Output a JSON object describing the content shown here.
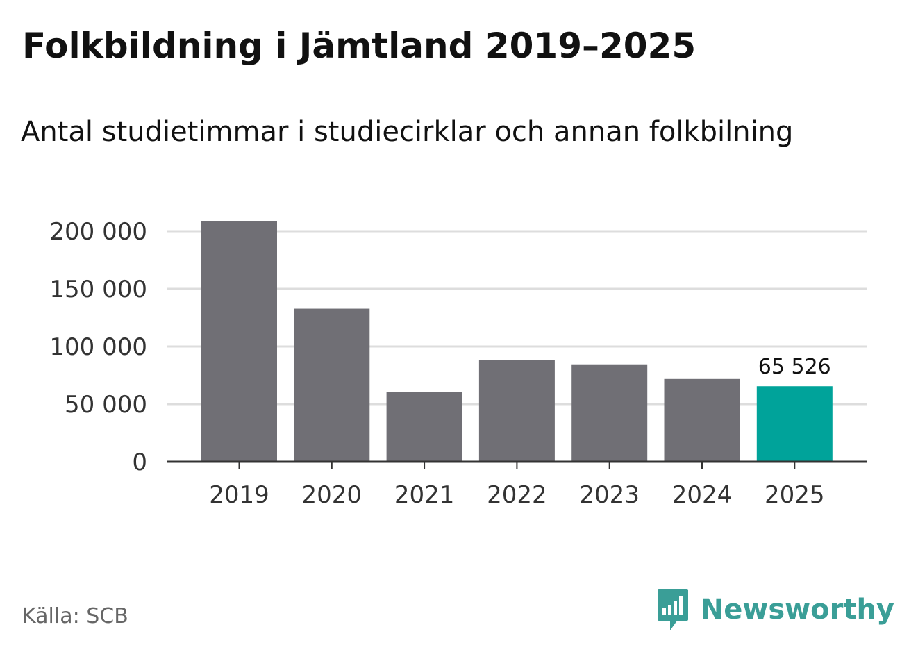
{
  "header": {
    "title": "Folkbildning i Jämtland 2019–2025",
    "subtitle": "Antal studietimmar i studiecirklar och annan folkbilning"
  },
  "chart_data": {
    "type": "bar",
    "categories": [
      "2019",
      "2020",
      "2021",
      "2022",
      "2023",
      "2024",
      "2025"
    ],
    "values": [
      208500,
      132800,
      60800,
      88000,
      84500,
      71800,
      65526
    ],
    "ylim": [
      0,
      200000
    ],
    "yticks": [
      0,
      50000,
      100000,
      150000,
      200000
    ],
    "ytick_labels": [
      "0",
      "50 000",
      "100 000",
      "150 000",
      "200 000"
    ],
    "data_labels": [
      {
        "category": "2025",
        "text": "65 526"
      }
    ],
    "grid": true,
    "colors": {
      "bar": "#706f75",
      "highlight": "#00a39a",
      "grid": "#dddddd",
      "axis": "#333333"
    },
    "highlight_category": "2025"
  },
  "footer": {
    "source": "Källa: SCB",
    "brand": "Newsworthy",
    "brand_icon": "newsworthy-logo-icon",
    "brand_color": "#3a9e97"
  }
}
